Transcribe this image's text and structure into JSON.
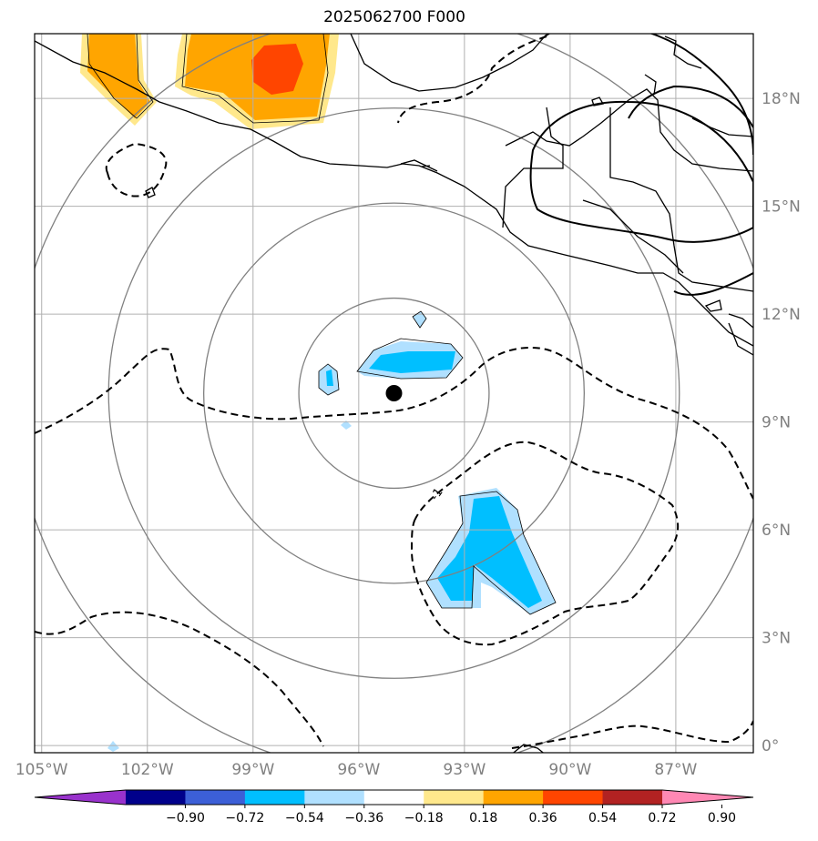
{
  "title": "2025062700 F000",
  "map": {
    "lon_range": [
      -105.2,
      -84.8
    ],
    "lat_range": [
      -0.2,
      19.8
    ],
    "lon_ticks": [
      -105,
      -102,
      -99,
      -96,
      -93,
      -90,
      -87
    ],
    "lon_labels": [
      "105°W",
      "102°W",
      "99°W",
      "96°W",
      "93°W",
      "90°W",
      "87°W"
    ],
    "lat_ticks": [
      0,
      3,
      6,
      9,
      12,
      15,
      18
    ],
    "lat_labels": [
      "0°",
      "3°N",
      "6°N",
      "9°N",
      "12°N",
      "15°N",
      "18°N"
    ],
    "center_marker": {
      "lon": -95.0,
      "lat": 9.8
    },
    "range_rings_deg": [
      2.7,
      5.4,
      8.1,
      10.8
    ],
    "contour_label": "-1",
    "colors": {
      "coastline": "#000000",
      "dashed_contour": "#000000",
      "range_ring": "#808080",
      "grid": "#b0b0b0"
    }
  },
  "colorbar": {
    "ticks": [
      "−0.90",
      "−0.72",
      "−0.54",
      "−0.36",
      "−0.18",
      "0.18",
      "0.36",
      "0.54",
      "0.72",
      "0.90"
    ],
    "colors": [
      "#9932cc",
      "#00008b",
      "#3c5fd7",
      "#00bfff",
      "#b0e0ff",
      "#ffffff",
      "#ffe88c",
      "#ffa500",
      "#ff4500",
      "#b22222",
      "#ff88b4"
    ]
  }
}
